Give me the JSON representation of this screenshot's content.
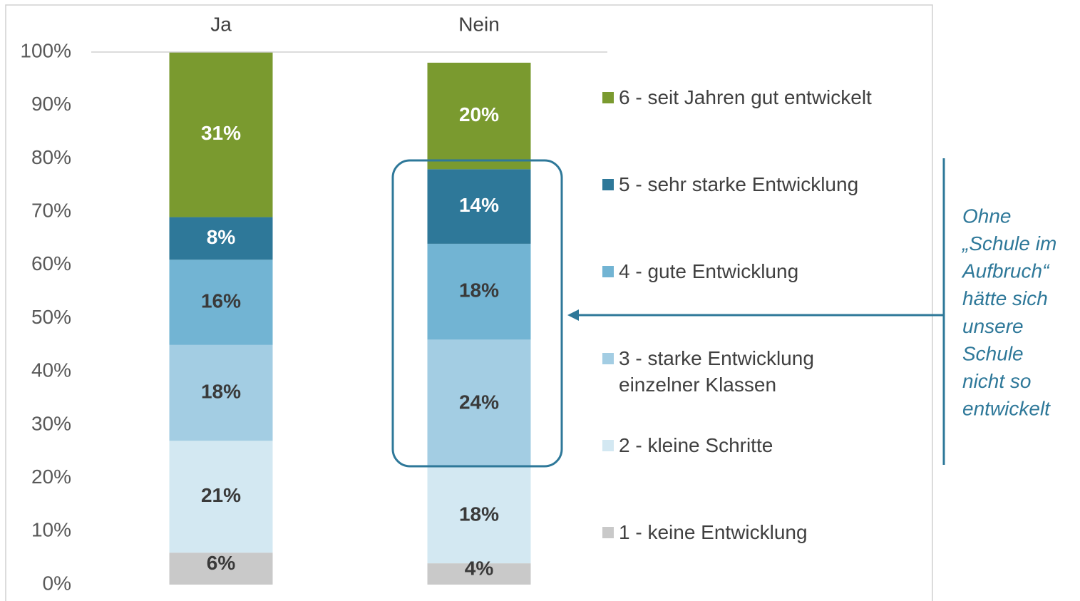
{
  "chart_data": {
    "type": "stacked_bar",
    "categories": [
      "Ja",
      "Nein"
    ],
    "series": [
      {
        "name": "1 - keine Entwicklung",
        "color": "#c9c9c9",
        "values": [
          6,
          4
        ],
        "value_labels": [
          "6%",
          "4%"
        ]
      },
      {
        "name": "2 - kleine Schritte",
        "color": "#d3e8f2",
        "values": [
          21,
          18
        ],
        "value_labels": [
          "21%",
          "18%"
        ]
      },
      {
        "name": "3 - starke Entwicklung einzelner Klassen",
        "color": "#a3cde3",
        "values": [
          18,
          24
        ],
        "value_labels": [
          "18%",
          "24%"
        ]
      },
      {
        "name": "4 - gute Entwicklung",
        "color": "#72b4d3",
        "values": [
          16,
          18
        ],
        "value_labels": [
          "16%",
          "18%"
        ]
      },
      {
        "name": "5 - sehr starke Entwicklung",
        "color": "#2e7899",
        "values": [
          8,
          14
        ],
        "value_labels": [
          "8%",
          "14%"
        ]
      },
      {
        "name": "6 - seit Jahren gut entwickelt",
        "color": "#7a9a2f",
        "values": [
          31,
          20
        ],
        "value_labels": [
          "31%",
          "20%"
        ]
      }
    ],
    "ylim": [
      0,
      100
    ],
    "yticks": [
      {
        "value": 0,
        "label": "0%"
      },
      {
        "value": 10,
        "label": "10%"
      },
      {
        "value": 20,
        "label": "20%"
      },
      {
        "value": 30,
        "label": "30%"
      },
      {
        "value": 40,
        "label": "40%"
      },
      {
        "value": 50,
        "label": "50%"
      },
      {
        "value": 60,
        "label": "60%"
      },
      {
        "value": 70,
        "label": "70%"
      },
      {
        "value": 80,
        "label": "80%"
      },
      {
        "value": 90,
        "label": "90%"
      },
      {
        "value": 100,
        "label": "100%"
      }
    ],
    "annotation": [
      "Ohne",
      "„Schule im",
      "Aufbruch“",
      "hätte sich",
      "unsere",
      "Schule",
      "nicht so",
      "entwickelt"
    ]
  }
}
